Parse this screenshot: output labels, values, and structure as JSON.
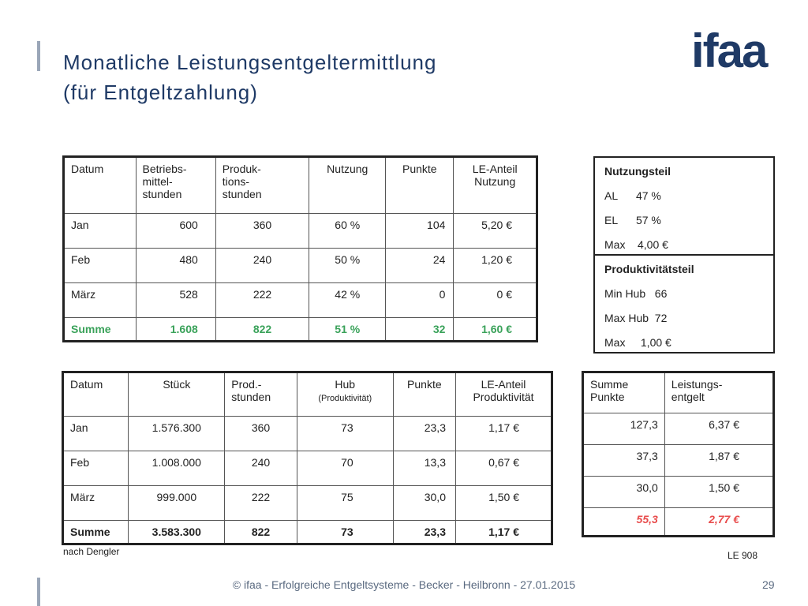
{
  "header": {
    "title_line1": "Monatliche Leistungsentgeltermittlung",
    "title_line2": "(für Entgeltzahlung)",
    "logo": "ifaa"
  },
  "table1": {
    "headers": [
      "Datum",
      "Betriebs-\nmittel-\nstunden",
      "Produk-\ntions-\nstunden",
      "Nutzung",
      "Punkte",
      "LE-Anteil\nNutzung"
    ],
    "rows": [
      [
        "Jan",
        "600",
        "360",
        "60 %",
        "104",
        "5,20 €"
      ],
      [
        "Feb",
        "480",
        "240",
        "50 %",
        "24",
        "1,20 €"
      ],
      [
        "März",
        "528",
        "222",
        "42 %",
        "0",
        "0 €"
      ]
    ],
    "sum": [
      "Summe",
      "1.608",
      "822",
      "51 %",
      "32",
      "1,60 €"
    ]
  },
  "nutzungsteil": {
    "title": "Nutzungsteil",
    "lines": [
      "AL      47 %",
      "EL      57 %",
      "Max    4,00 €"
    ]
  },
  "produktivitaetsteil": {
    "title": "Produktivitätsteil",
    "lines": [
      "Min Hub   66",
      "Max Hub  72",
      "Max     1,00 €"
    ]
  },
  "table2": {
    "headers": [
      "Datum",
      "Stück",
      "Prod.-\nstunden",
      "Hub",
      "Punkte",
      "LE-Anteil\nProduktivität"
    ],
    "hub_sub": "(Produktivität)",
    "rows": [
      [
        "Jan",
        "1.576.300",
        "360",
        "73",
        "23,3",
        "1,17 €"
      ],
      [
        "Feb",
        "1.008.000",
        "240",
        "70",
        "13,3",
        "0,67 €"
      ],
      [
        "März",
        "999.000",
        "222",
        "75",
        "30,0",
        "1,50 €"
      ]
    ],
    "sum": [
      "Summe",
      "3.583.300",
      "822",
      "73",
      "23,3",
      "1,17 €"
    ]
  },
  "table3": {
    "headers": [
      "Summe\nPunkte",
      "Leistungs-\nentgelt"
    ],
    "rows": [
      [
        "127,3",
        "6,37 €"
      ],
      [
        "37,3",
        "1,87 €"
      ],
      [
        "30,0",
        "1,50 €"
      ]
    ],
    "sum": [
      "55,3",
      "2,77 €"
    ]
  },
  "notes": {
    "source": "nach Dengler",
    "code": "LE 908"
  },
  "footer": {
    "text": "© ifaa - Erfolgreiche Entgeltsysteme - Becker - Heilbronn - 27.01.2015",
    "page": "29"
  },
  "colors": {
    "accent": "#1f3a66",
    "sum_green": "#3aa25a",
    "sum_red": "#e84c4c"
  }
}
